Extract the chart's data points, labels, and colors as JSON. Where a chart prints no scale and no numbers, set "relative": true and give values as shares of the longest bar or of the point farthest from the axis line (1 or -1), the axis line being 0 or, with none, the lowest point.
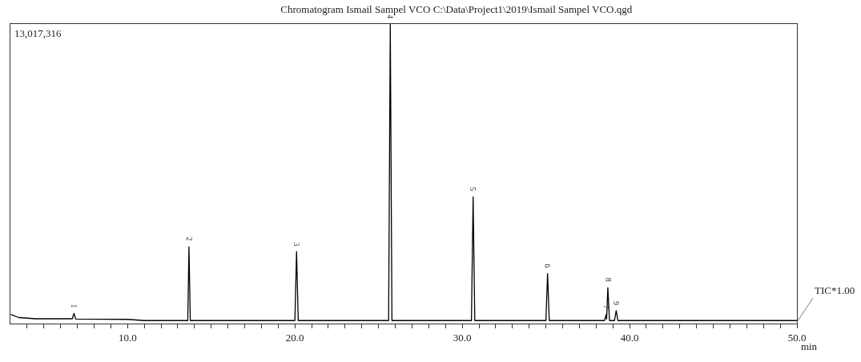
{
  "chart_data": {
    "type": "line",
    "title": "Chromatogram Ismail Sampel VCO C:\\Data\\Project1\\2019\\Ismail Sampel VCO.qgd",
    "xlabel": "min",
    "relative": true,
    "grid": false,
    "marker": "none",
    "line_style": "solid",
    "tick_labels": "x",
    "xlim": [
      3,
      50
    ],
    "xticks": [
      {
        "value": 4,
        "label": null
      },
      {
        "value": 5,
        "label": null
      },
      {
        "value": 6,
        "label": null
      },
      {
        "value": 7,
        "label": null
      },
      {
        "value": 8,
        "label": null
      },
      {
        "value": 9,
        "label": null
      },
      {
        "value": 10,
        "label": "10.0"
      },
      {
        "value": 11,
        "label": null
      },
      {
        "value": 12,
        "label": null
      },
      {
        "value": 13,
        "label": null
      },
      {
        "value": 14,
        "label": null
      },
      {
        "value": 15,
        "label": null
      },
      {
        "value": 16,
        "label": null
      },
      {
        "value": 17,
        "label": null
      },
      {
        "value": 18,
        "label": null
      },
      {
        "value": 19,
        "label": null
      },
      {
        "value": 20,
        "label": "20.0"
      },
      {
        "value": 21,
        "label": null
      },
      {
        "value": 22,
        "label": null
      },
      {
        "value": 23,
        "label": null
      },
      {
        "value": 24,
        "label": null
      },
      {
        "value": 25,
        "label": null
      },
      {
        "value": 26,
        "label": null
      },
      {
        "value": 27,
        "label": null
      },
      {
        "value": 28,
        "label": null
      },
      {
        "value": 29,
        "label": null
      },
      {
        "value": 30,
        "label": "30.0"
      },
      {
        "value": 31,
        "label": null
      },
      {
        "value": 32,
        "label": null
      },
      {
        "value": 33,
        "label": null
      },
      {
        "value": 34,
        "label": null
      },
      {
        "value": 35,
        "label": null
      },
      {
        "value": 36,
        "label": null
      },
      {
        "value": 37,
        "label": null
      },
      {
        "value": 38,
        "label": null
      },
      {
        "value": 39,
        "label": null
      },
      {
        "value": 40,
        "label": "40.0"
      },
      {
        "value": 41,
        "label": null
      },
      {
        "value": 42,
        "label": null
      },
      {
        "value": 43,
        "label": null
      },
      {
        "value": 44,
        "label": null
      },
      {
        "value": 45,
        "label": null
      },
      {
        "value": 46,
        "label": null
      },
      {
        "value": 47,
        "label": null
      },
      {
        "value": 48,
        "label": null
      },
      {
        "value": 49,
        "label": null
      },
      {
        "value": 50,
        "label": "50.0"
      }
    ],
    "series": [
      {
        "color": "#000000",
        "x": [
          3.05,
          3.5,
          4.5,
          6.7,
          6.8,
          6.9,
          10,
          11,
          13.6,
          13.67,
          13.75,
          20.0,
          20.1,
          20.2,
          25.6,
          25.7,
          25.8,
          30.55,
          30.65,
          30.75,
          35.0,
          35.1,
          35.2,
          38.5,
          38.6,
          38.63,
          38.7,
          38.8,
          39.1,
          39.2,
          39.3,
          50
        ],
        "values": [
          0.03,
          0.02,
          0.016,
          0.016,
          0.034,
          0.015,
          0.014,
          0.01,
          0.01,
          0.256,
          0.01,
          0.01,
          0.24,
          0.01,
          0.01,
          1.0,
          0.01,
          0.01,
          0.423,
          0.01,
          0.01,
          0.167,
          0.01,
          0.01,
          0.03,
          0.015,
          0.12,
          0.01,
          0.01,
          0.043,
          0.01,
          0.01
        ]
      }
    ],
    "annotations": [
      "13,017,316",
      "TIC*1.00",
      {
        "text": "1",
        "x": 6.8,
        "y": 0.034
      },
      {
        "text": "2",
        "x": 13.67,
        "y": 0.256
      },
      {
        "text": "3",
        "x": 20.1,
        "y": 0.24
      },
      {
        "text": "4",
        "x": 25.7,
        "y": 1.0
      },
      {
        "text": "5",
        "x": 30.65,
        "y": 0.423
      },
      {
        "text": "6",
        "x": 35.1,
        "y": 0.167
      },
      {
        "text": "7",
        "x": 38.6,
        "y": 0.03
      },
      {
        "text": "8",
        "x": 38.7,
        "y": 0.12
      },
      {
        "text": "9",
        "x": 39.2,
        "y": 0.043
      }
    ]
  }
}
